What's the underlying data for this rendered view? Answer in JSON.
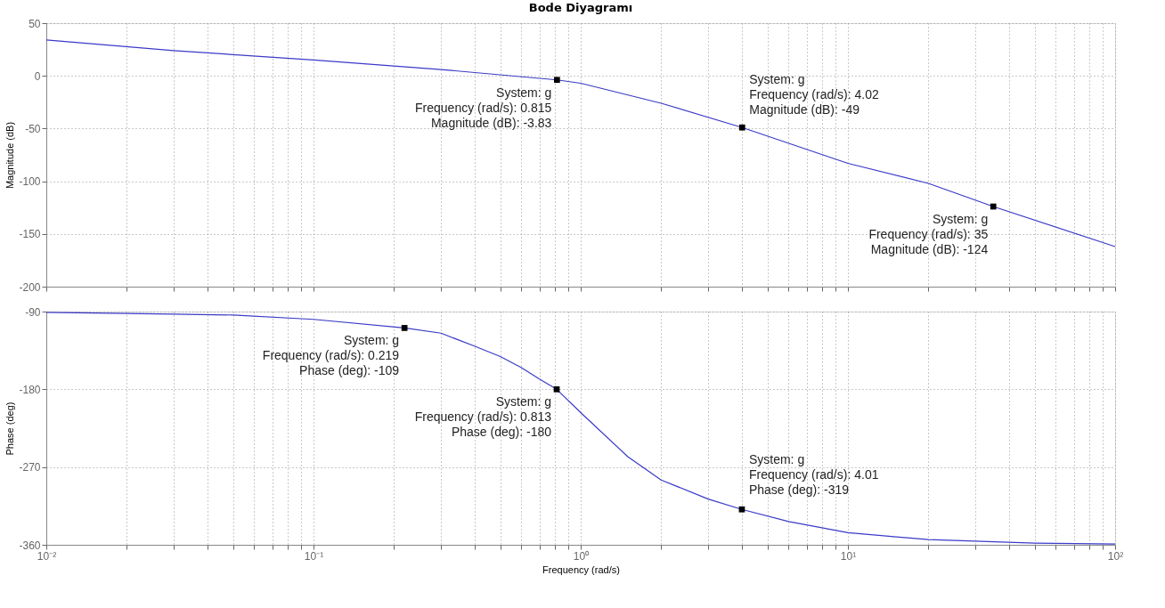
{
  "chart_data": [
    {
      "type": "line",
      "title": "Bode Diyagramı",
      "ylabel": "Magnitude (dB)",
      "log": "x",
      "grid": true,
      "tick_labels": "y",
      "x": [
        0.01,
        0.03,
        0.1,
        0.3,
        0.815,
        1,
        2,
        4.02,
        10,
        20,
        35,
        100
      ],
      "series": [
        {
          "color": "#3a3ac8",
          "values": [
            34,
            24,
            15,
            6,
            -3.83,
            -7,
            -26,
            -49,
            -83,
            -102,
            -124,
            -162
          ]
        }
      ],
      "xlim": [
        0.01,
        100
      ],
      "xticks": [
        {
          "value": 0.01,
          "label": null
        },
        {
          "value": 0.02,
          "label": null
        },
        {
          "value": 0.03,
          "label": null
        },
        {
          "value": 0.04,
          "label": null
        },
        {
          "value": 0.05,
          "label": null
        },
        {
          "value": 0.06,
          "label": null
        },
        {
          "value": 0.07,
          "label": null
        },
        {
          "value": 0.08,
          "label": null
        },
        {
          "value": 0.09,
          "label": null
        },
        {
          "value": 0.1,
          "label": null
        },
        {
          "value": 0.2,
          "label": null
        },
        {
          "value": 0.3,
          "label": null
        },
        {
          "value": 0.4,
          "label": null
        },
        {
          "value": 0.5,
          "label": null
        },
        {
          "value": 0.6,
          "label": null
        },
        {
          "value": 0.7,
          "label": null
        },
        {
          "value": 0.8,
          "label": null
        },
        {
          "value": 0.9,
          "label": null
        },
        {
          "value": 1,
          "label": null
        },
        {
          "value": 2,
          "label": null
        },
        {
          "value": 3,
          "label": null
        },
        {
          "value": 4,
          "label": null
        },
        {
          "value": 5,
          "label": null
        },
        {
          "value": 6,
          "label": null
        },
        {
          "value": 7,
          "label": null
        },
        {
          "value": 8,
          "label": null
        },
        {
          "value": 9,
          "label": null
        },
        {
          "value": 10,
          "label": null
        },
        {
          "value": 20,
          "label": null
        },
        {
          "value": 30,
          "label": null
        },
        {
          "value": 40,
          "label": null
        },
        {
          "value": 50,
          "label": null
        },
        {
          "value": 60,
          "label": null
        },
        {
          "value": 70,
          "label": null
        },
        {
          "value": 80,
          "label": null
        },
        {
          "value": 90,
          "label": null
        },
        {
          "value": 100,
          "label": null
        }
      ],
      "ylim": [
        -200,
        50
      ],
      "yticks": [
        -200,
        -150,
        -100,
        -50,
        0,
        50
      ],
      "annotations": [
        {
          "text": "System: g\nFrequency (rad/s): 0.815\nMagnitude (dB): -3.83",
          "x": 0.815,
          "y": -3.83
        },
        {
          "text": "System: g\nFrequency (rad/s): 4.02\nMagnitude (dB): -49",
          "x": 4.02,
          "y": -49
        },
        {
          "text": "System: g\nFrequency (rad/s): 35\nMagnitude (dB): -124",
          "x": 35,
          "y": -124
        }
      ]
    },
    {
      "type": "line",
      "ylabel": "Phase (deg)",
      "xlabel": "Frequency  (rad/s)",
      "log": "x",
      "grid": true,
      "x": [
        0.01,
        0.03,
        0.05,
        0.1,
        0.219,
        0.3,
        0.4,
        0.5,
        0.6,
        0.7,
        0.813,
        1,
        1.5,
        2,
        3,
        4.01,
        6,
        10,
        20,
        50,
        100
      ],
      "series": [
        {
          "color": "#3a3ac8",
          "values": [
            -91,
            -93,
            -94,
            -99,
            -109,
            -115,
            -130,
            -142,
            -155,
            -168,
            -180,
            -207,
            -258,
            -285,
            -307,
            -319,
            -333,
            -346,
            -354,
            -358,
            -359
          ]
        }
      ],
      "xlim": [
        0.01,
        100
      ],
      "xticks": [
        {
          "value": 0.01,
          "label": "10⁻²"
        },
        {
          "value": 0.02,
          "label": null
        },
        {
          "value": 0.03,
          "label": null
        },
        {
          "value": 0.04,
          "label": null
        },
        {
          "value": 0.05,
          "label": null
        },
        {
          "value": 0.06,
          "label": null
        },
        {
          "value": 0.07,
          "label": null
        },
        {
          "value": 0.08,
          "label": null
        },
        {
          "value": 0.09,
          "label": null
        },
        {
          "value": 0.1,
          "label": "10⁻¹"
        },
        {
          "value": 0.2,
          "label": null
        },
        {
          "value": 0.3,
          "label": null
        },
        {
          "value": 0.4,
          "label": null
        },
        {
          "value": 0.5,
          "label": null
        },
        {
          "value": 0.6,
          "label": null
        },
        {
          "value": 0.7,
          "label": null
        },
        {
          "value": 0.8,
          "label": null
        },
        {
          "value": 0.9,
          "label": null
        },
        {
          "value": 1,
          "label": "10⁰"
        },
        {
          "value": 2,
          "label": null
        },
        {
          "value": 3,
          "label": null
        },
        {
          "value": 4,
          "label": null
        },
        {
          "value": 5,
          "label": null
        },
        {
          "value": 6,
          "label": null
        },
        {
          "value": 7,
          "label": null
        },
        {
          "value": 8,
          "label": null
        },
        {
          "value": 9,
          "label": null
        },
        {
          "value": 10,
          "label": "10¹"
        },
        {
          "value": 20,
          "label": null
        },
        {
          "value": 30,
          "label": null
        },
        {
          "value": 40,
          "label": null
        },
        {
          "value": 50,
          "label": null
        },
        {
          "value": 60,
          "label": null
        },
        {
          "value": 70,
          "label": null
        },
        {
          "value": 80,
          "label": null
        },
        {
          "value": 90,
          "label": null
        },
        {
          "value": 100,
          "label": "10²"
        }
      ],
      "ylim": [
        -360,
        -90
      ],
      "yticks": [
        -360,
        -270,
        -180,
        -90
      ],
      "annotations": [
        {
          "text": "System: g\nFrequency (rad/s): 0.219\nPhase (deg): -109",
          "x": 0.219,
          "y": -109
        },
        {
          "text": "System: g\nFrequency (rad/s): 0.813\nPhase (deg): -180",
          "x": 0.813,
          "y": -180
        },
        {
          "text": "System: g\nFrequency (rad/s): 4.01\nPhase (deg): -319",
          "x": 4.01,
          "y": -319
        }
      ]
    }
  ]
}
